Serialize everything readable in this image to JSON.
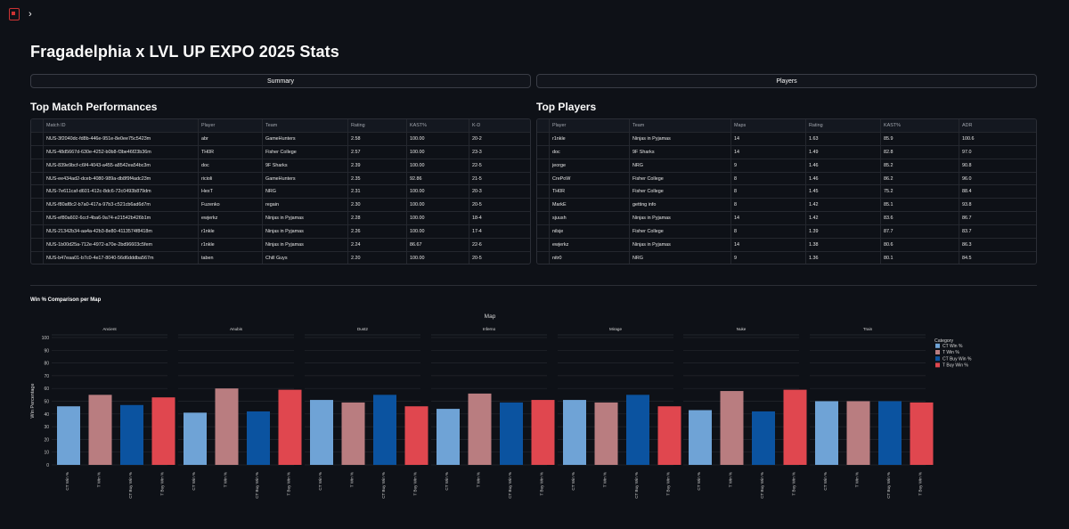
{
  "app": {
    "title": "Fragadelphia x LVL UP EXPO 2025 Stats",
    "sidebar_toggle": "›"
  },
  "tabs": {
    "summary": "Summary",
    "players": "Players"
  },
  "matches": {
    "heading": "Top Match Performances",
    "columns": [
      "Match ID",
      "Player",
      "Team",
      "Rating",
      "KAST%",
      "K-D"
    ],
    "rows": [
      [
        "NUS-3f2040dc-fd8b-446e-951e-8e0ee75c5423m",
        "abr",
        "GameHunters",
        "2.58",
        "100.00",
        "20-2"
      ],
      [
        "NUS-48d5667d-630e-4252-b0b8-f3be46f23b36m",
        "TH0R",
        "Fisher College",
        "2.57",
        "100.00",
        "23-3"
      ],
      [
        "NUS-839e9bcf-c6f4-4043-a455-a8542ea54bc3m",
        "doc",
        "9F Sharks",
        "2.39",
        "100.00",
        "22-5"
      ],
      [
        "NUS-ee434ad2-dceb-4080-989a-db8f9f4adc23m",
        "ricioli",
        "GameHunters",
        "2.35",
        "92.86",
        "21-5"
      ],
      [
        "NUS-7e611caf-d601-412c-8dc6-72c0493b879dm",
        "HexT",
        "NRG",
        "2.31",
        "100.00",
        "20-3"
      ],
      [
        "NUS-f80af8c2-b7a0-417a-97b3-c521cb6ad6d7m",
        "Fuzenko",
        "regain",
        "2.30",
        "100.00",
        "20-5"
      ],
      [
        "NUS-ef80a602-6ccf-4ba6-9a74-e21542b426b1m",
        "ewjerkz",
        "Ninjas in Pyjamas",
        "2.28",
        "100.00",
        "18-4"
      ],
      [
        "NUS-21342b34-aa4a-42b3-8e80-4113574f8418m",
        "r1nkle",
        "Ninjas in Pyjamas",
        "2.26",
        "100.00",
        "17-4"
      ],
      [
        "NUS-1b00d25a-712e-4972-a70e-2bd96603c5fem",
        "r1nkle",
        "Ninjas in Pyjamas",
        "2.24",
        "86.67",
        "22-6"
      ],
      [
        "NUS-b47eaa01-b7c0-4e17-8040-56d6dddba567m",
        "taben",
        "Chill Guys",
        "2.20",
        "100.00",
        "20-5"
      ]
    ]
  },
  "players": {
    "heading": "Top Players",
    "columns": [
      "Player",
      "Team",
      "Maps",
      "Rating",
      "KAST%",
      "ADR"
    ],
    "rows": [
      [
        "r1nkle",
        "Ninjas in Pyjamas",
        "14",
        "1.63",
        "85.9",
        "100.6"
      ],
      [
        "doc",
        "9F Sharks",
        "14",
        "1.49",
        "82.8",
        "97.0"
      ],
      [
        "jeorge",
        "NRG",
        "9",
        "1.46",
        "85.2",
        "90.8"
      ],
      [
        "CrePoW",
        "Fisher College",
        "8",
        "1.46",
        "86.2",
        "96.0"
      ],
      [
        "TH0R",
        "Fisher College",
        "8",
        "1.45",
        "75.2",
        "88.4"
      ],
      [
        "MarkE",
        "getting info",
        "8",
        "1.42",
        "85.1",
        "93.8"
      ],
      [
        "sjuush",
        "Ninjas in Pyjamas",
        "14",
        "1.42",
        "83.6",
        "86.7"
      ],
      [
        "nilsje",
        "Fisher College",
        "8",
        "1.39",
        "87.7",
        "83.7"
      ],
      [
        "ewjerkz",
        "Ninjas in Pyjamas",
        "14",
        "1.38",
        "80.6",
        "86.3"
      ],
      [
        "nitr0",
        "NRG",
        "9",
        "1.36",
        "80.1",
        "84.5"
      ]
    ]
  },
  "chart_section": {
    "heading": "Win % Comparison per Map"
  },
  "chart_data": {
    "type": "bar",
    "title": "Map",
    "ylabel": "Win Percentage",
    "ylim": [
      0,
      100
    ],
    "yticks": [
      0,
      10,
      20,
      30,
      40,
      50,
      60,
      70,
      80,
      90,
      100
    ],
    "grid": true,
    "legend_position": "right",
    "legend_title": "Category",
    "categories": [
      "CT Win %",
      "T Win %",
      "CT Buy Win %",
      "T Buy Win %"
    ],
    "colors": [
      "#6fa3d6",
      "#b97d80",
      "#0b53a0",
      "#e0474f"
    ],
    "facets": [
      {
        "name": "Ancient",
        "values": [
          46,
          55,
          47,
          53
        ]
      },
      {
        "name": "Anubis",
        "values": [
          41,
          60,
          42,
          59
        ]
      },
      {
        "name": "Dust2",
        "values": [
          51,
          49,
          55,
          46
        ]
      },
      {
        "name": "Inferno",
        "values": [
          44,
          56,
          49,
          51
        ]
      },
      {
        "name": "Mirage",
        "values": [
          51,
          49,
          55,
          46
        ]
      },
      {
        "name": "Nuke",
        "values": [
          43,
          58,
          42,
          59
        ]
      },
      {
        "name": "Train",
        "values": [
          50,
          50,
          50,
          49
        ]
      }
    ]
  }
}
